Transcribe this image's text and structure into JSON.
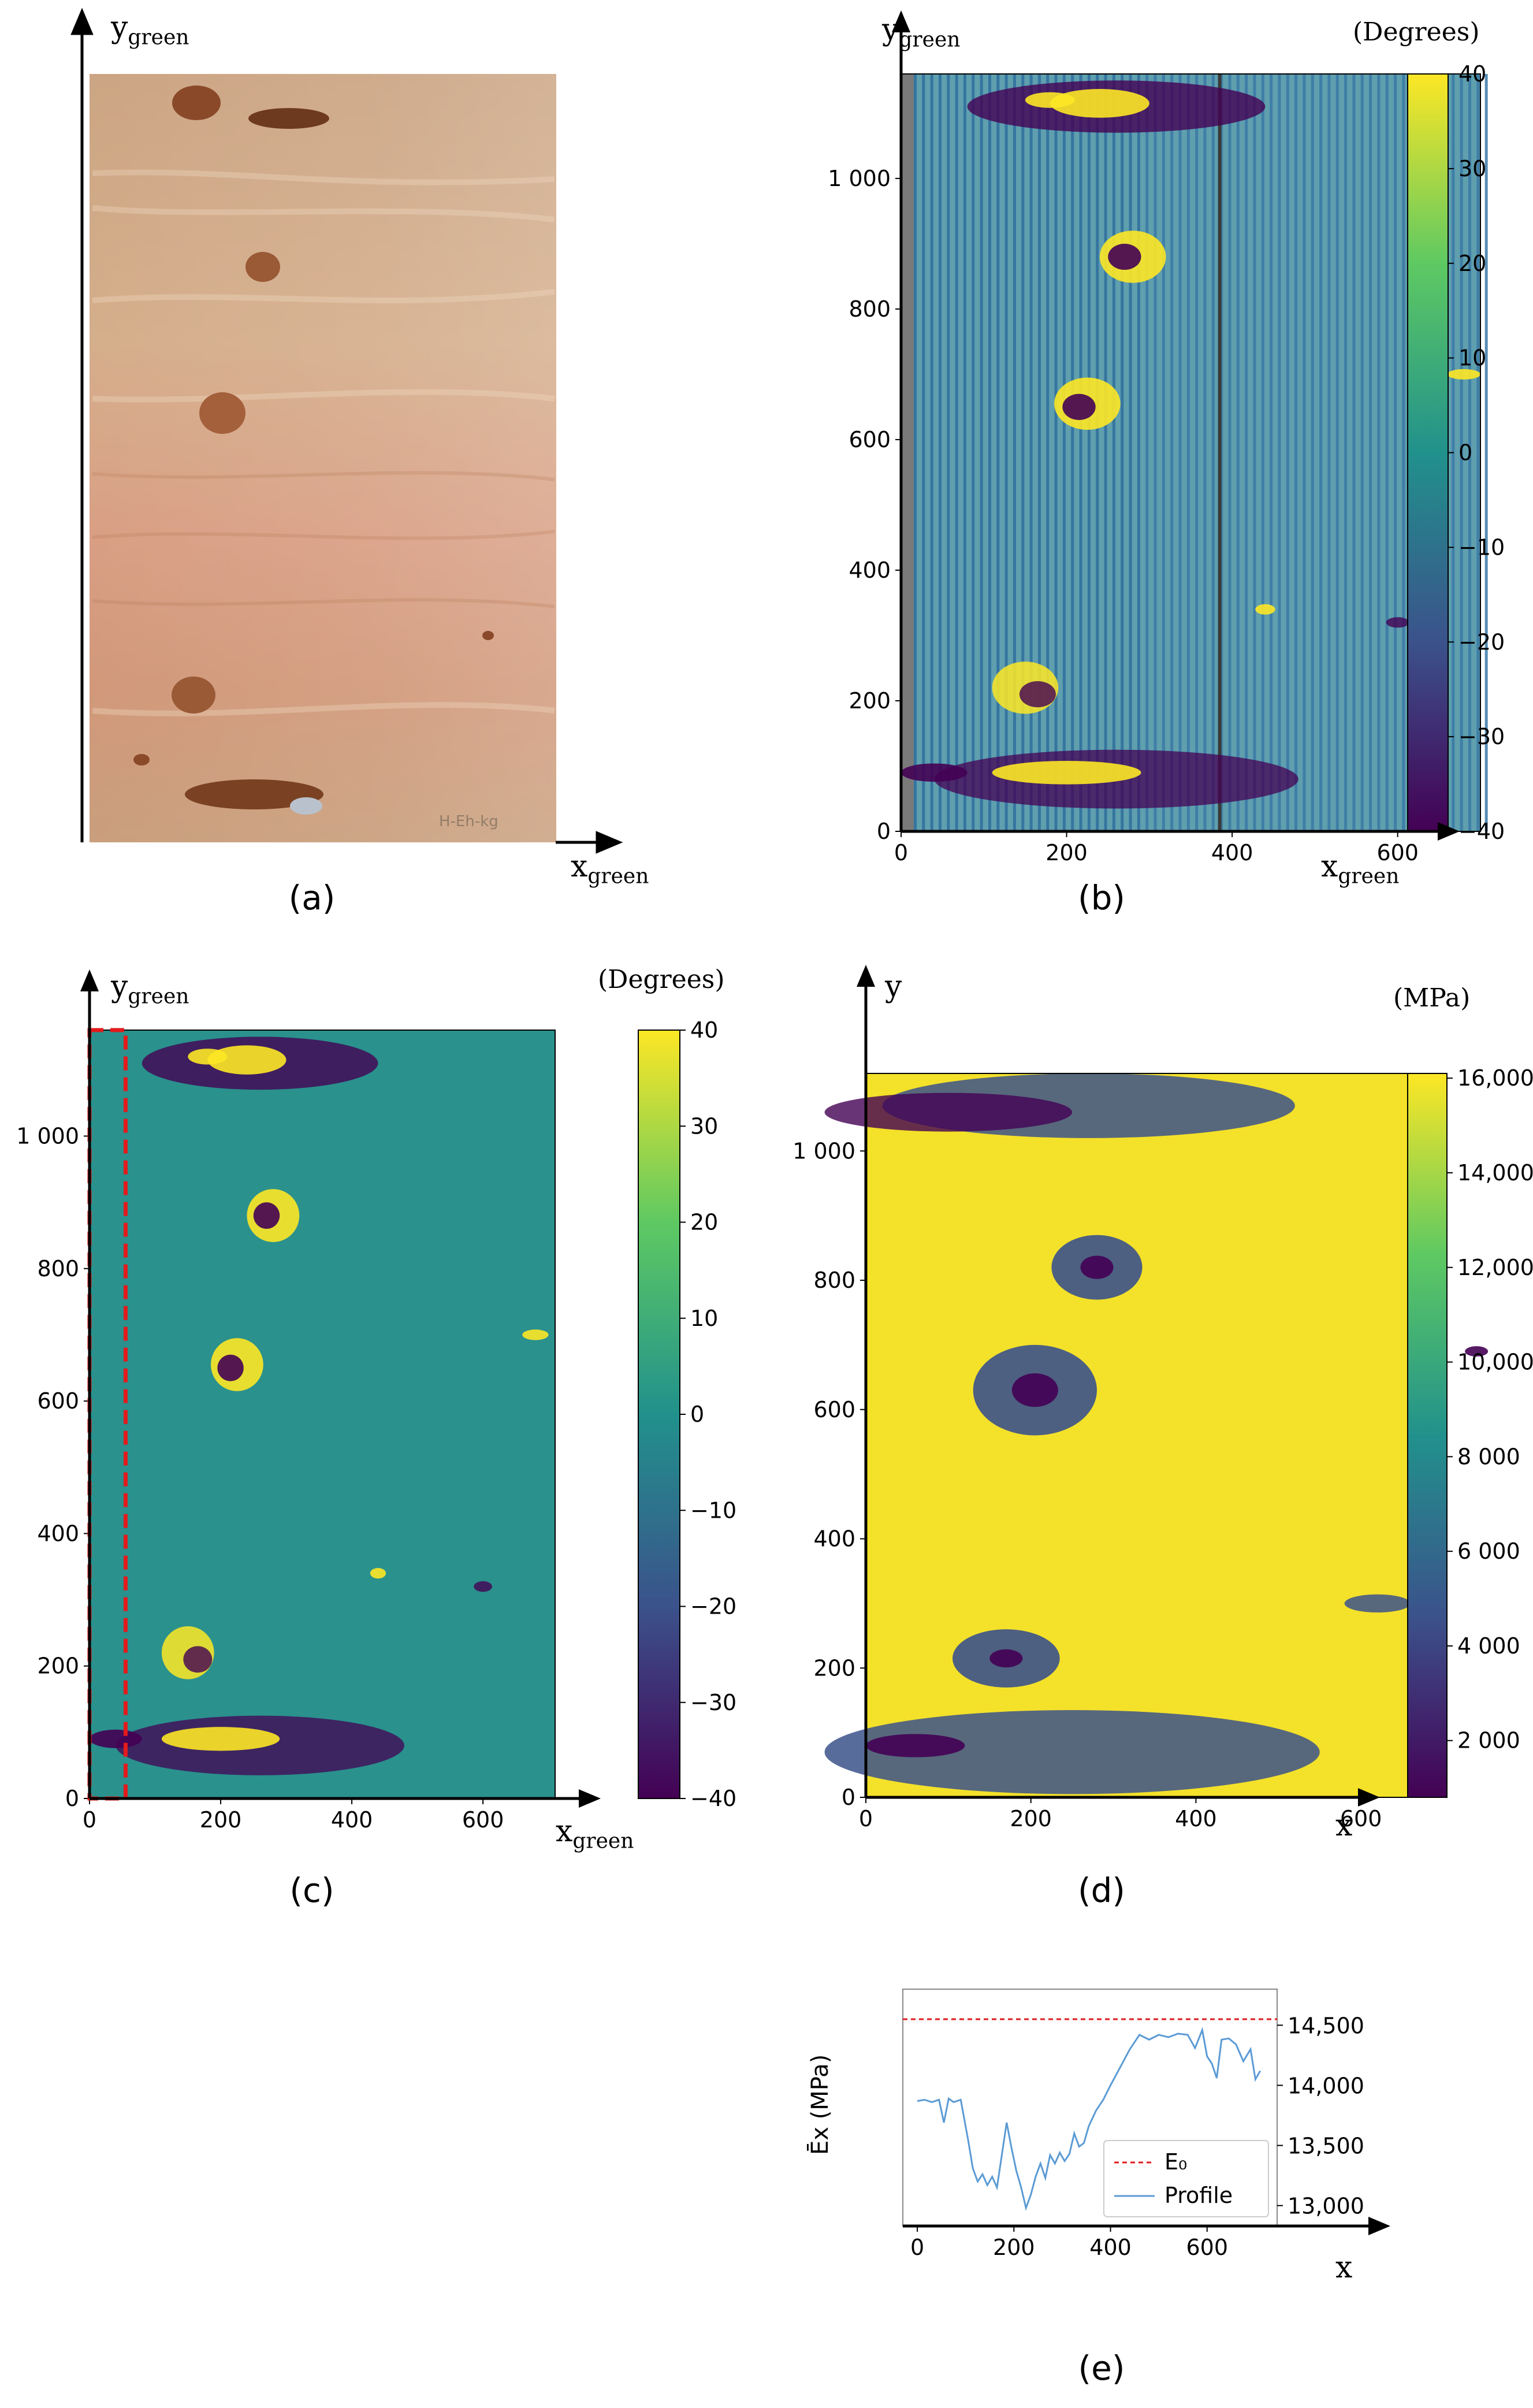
{
  "captions": {
    "a": "(a)",
    "b": "(b)",
    "c": "(c)",
    "d": "(d)",
    "e": "(e)"
  },
  "panel_a": {
    "y_axis_label": "y",
    "y_axis_sub": "green",
    "x_axis_label": "x",
    "x_axis_sub": "green",
    "sample_mark": "H-Eh-kg"
  },
  "colors": {
    "viridis_top": "#fde725",
    "viridis_mid": "#21918c",
    "viridis_bottom": "#440154",
    "dashed_box": "#e31a1c",
    "profile": "#5b9bd5",
    "e0_line": "#e31a1c"
  },
  "chart_data": [
    {
      "id": "b",
      "type": "heatmap",
      "title": "",
      "xlabel": "x",
      "xlabel_sub": "green",
      "ylabel": "y",
      "ylabel_sub": "green",
      "xticks": [
        "0",
        "200",
        "400",
        "600"
      ],
      "xtick_values": [
        0,
        200,
        400,
        600
      ],
      "yticks": [
        "0",
        "200",
        "400",
        "600",
        "800",
        "1 000"
      ],
      "ytick_values": [
        0,
        200,
        400,
        600,
        800,
        1000
      ],
      "xlim": [
        0,
        700
      ],
      "ylim": [
        0,
        1160
      ],
      "colorbar": {
        "label": "(Degrees)",
        "range": [
          -40,
          40
        ],
        "ticks": [
          "40",
          "30",
          "20",
          "10",
          "0",
          "−10",
          "−20",
          "−30",
          "−40"
        ],
        "tick_values": [
          40,
          30,
          20,
          10,
          0,
          -10,
          -20,
          -30,
          -40
        ]
      }
    },
    {
      "id": "c",
      "type": "heatmap",
      "title": "",
      "xlabel": "x",
      "xlabel_sub": "green",
      "ylabel": "y",
      "ylabel_sub": "green",
      "xticks": [
        "0",
        "200",
        "400",
        "600"
      ],
      "xtick_values": [
        0,
        200,
        400,
        600
      ],
      "yticks": [
        "0",
        "200",
        "400",
        "600",
        "800",
        "1 000"
      ],
      "ytick_values": [
        0,
        200,
        400,
        600,
        800,
        1000
      ],
      "xlim": [
        0,
        710
      ],
      "ylim": [
        0,
        1160
      ],
      "highlight_region_x": [
        0,
        55
      ],
      "colorbar": {
        "label": "(Degrees)",
        "range": [
          -40,
          40
        ],
        "ticks": [
          "40",
          "30",
          "20",
          "10",
          "0",
          "−10",
          "−20",
          "−30",
          "−40"
        ],
        "tick_values": [
          40,
          30,
          20,
          10,
          0,
          -10,
          -20,
          -30,
          -40
        ]
      }
    },
    {
      "id": "d",
      "type": "heatmap",
      "title": "",
      "xlabel": "x",
      "ylabel": "y",
      "xticks": [
        "0",
        "200",
        "400",
        "600"
      ],
      "xtick_values": [
        0,
        200,
        400,
        600
      ],
      "yticks": [
        "0",
        "200",
        "400",
        "600",
        "800",
        "1 000"
      ],
      "ytick_values": [
        0,
        200,
        400,
        600,
        800,
        1000
      ],
      "xlim": [
        0,
        700
      ],
      "ylim": [
        0,
        1120
      ],
      "colorbar": {
        "label": "(MPa)",
        "range": [
          800,
          16100
        ],
        "ticks": [
          "16,000",
          "14,000",
          "12,000",
          "10,000",
          "8 000",
          "6 000",
          "4 000",
          "2 000"
        ],
        "tick_values": [
          16000,
          14000,
          12000,
          10000,
          8000,
          6000,
          4000,
          2000
        ]
      }
    },
    {
      "id": "e",
      "type": "line",
      "title": "",
      "xlabel": "x",
      "ylabel": "Ēx (MPa)",
      "xticks": [
        "0",
        "200",
        "400",
        "600"
      ],
      "xtick_values": [
        0,
        200,
        400,
        600
      ],
      "yticks": [
        "14,500",
        "14,000",
        "13,500",
        "13,000"
      ],
      "ytick_values": [
        14500,
        14000,
        13500,
        13000
      ],
      "xlim": [
        -30,
        745
      ],
      "ylim": [
        12830,
        14800
      ],
      "legend_position": "lower-right",
      "series": [
        {
          "name": "E₀",
          "style": "dashed",
          "value": 14550
        },
        {
          "name": "Profile",
          "x": [
            0,
            15,
            30,
            45,
            55,
            65,
            75,
            90,
            105,
            115,
            125,
            135,
            145,
            155,
            165,
            175,
            185,
            195,
            205,
            215,
            225,
            235,
            245,
            255,
            265,
            275,
            285,
            295,
            305,
            315,
            325,
            335,
            345,
            355,
            370,
            385,
            400,
            420,
            440,
            460,
            480,
            500,
            520,
            540,
            560,
            575,
            590,
            600,
            610,
            620,
            630,
            645,
            660,
            675,
            690,
            700,
            710
          ],
          "y": [
            13870,
            13880,
            13860,
            13880,
            13690,
            13890,
            13860,
            13880,
            13550,
            13310,
            13200,
            13260,
            13170,
            13240,
            13150,
            13420,
            13690,
            13480,
            13290,
            13150,
            12980,
            13090,
            13240,
            13350,
            13230,
            13420,
            13350,
            13440,
            13370,
            13430,
            13600,
            13490,
            13520,
            13660,
            13790,
            13880,
            14000,
            14150,
            14300,
            14420,
            14380,
            14420,
            14400,
            14430,
            14420,
            14310,
            14460,
            14240,
            14180,
            14060,
            14380,
            14390,
            14340,
            14200,
            14300,
            14050,
            14120
          ]
        }
      ]
    }
  ]
}
